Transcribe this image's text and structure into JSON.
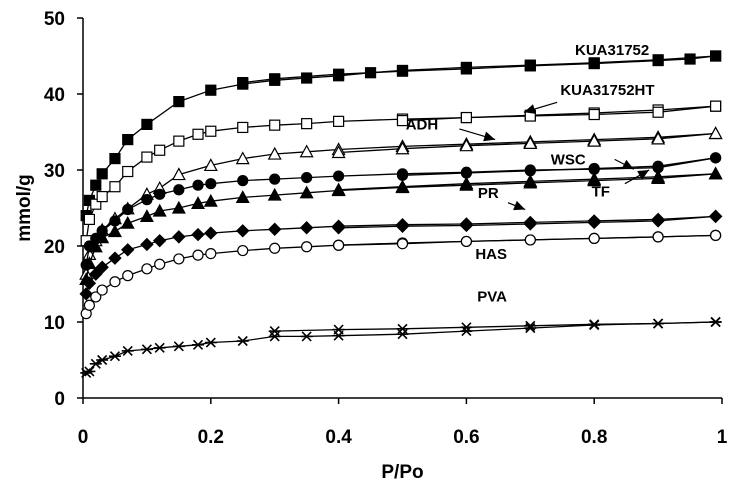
{
  "chart_data": {
    "type": "line",
    "xlabel": "P/Po",
    "ylabel": "mmol/g",
    "xlim": [
      0,
      1
    ],
    "ylim": [
      0,
      50
    ],
    "x_ticks": [
      "0",
      "0.2",
      "0.4",
      "0.6",
      "0.8",
      "1"
    ],
    "y_ticks": [
      "0",
      "10",
      "20",
      "30",
      "40",
      "50"
    ],
    "grid": false,
    "legend": "none",
    "series": [
      {
        "name": "KUA31752",
        "marker": "square-filled",
        "adsorption": {
          "x": [
            0.005,
            0.01,
            0.02,
            0.03,
            0.05,
            0.07,
            0.1,
            0.15,
            0.2,
            0.25,
            0.3,
            0.35,
            0.4,
            0.45,
            0.5,
            0.6,
            0.7,
            0.8,
            0.9,
            0.99
          ],
          "y": [
            24,
            26,
            28,
            29.5,
            31.5,
            34,
            36,
            39,
            40.5,
            41.3,
            41.8,
            42.1,
            42.4,
            42.8,
            43.1,
            43.5,
            43.8,
            44.1,
            44.5,
            45
          ]
        },
        "desorption": {
          "x": [
            0.99,
            0.95,
            0.9,
            0.8,
            0.7,
            0.6,
            0.5,
            0.4,
            0.3,
            0.25
          ],
          "y": [
            45,
            44.6,
            44.4,
            44,
            43.7,
            43.3,
            43,
            42.6,
            42,
            41.5
          ]
        }
      },
      {
        "name": "KUA31752HT",
        "marker": "square-open",
        "adsorption": {
          "x": [
            0.005,
            0.01,
            0.02,
            0.03,
            0.05,
            0.07,
            0.1,
            0.12,
            0.15,
            0.18,
            0.2,
            0.25,
            0.3,
            0.35,
            0.4,
            0.5,
            0.6,
            0.7,
            0.8,
            0.9,
            0.99
          ],
          "y": [
            20.7,
            23.5,
            25.5,
            26.5,
            27.8,
            29.8,
            31.7,
            32.6,
            33.8,
            34.7,
            35.1,
            35.6,
            35.9,
            36.1,
            36.4,
            36.7,
            36.9,
            37.2,
            37.5,
            37.9,
            38.4
          ]
        },
        "desorption": {
          "x": [
            0.99,
            0.9,
            0.8,
            0.7,
            0.6,
            0.5
          ],
          "y": [
            38.4,
            37.6,
            37.3,
            37.1,
            36.9,
            36.5
          ]
        }
      },
      {
        "name": "ADH",
        "marker": "triangle-open",
        "adsorption": {
          "x": [
            0.005,
            0.01,
            0.02,
            0.03,
            0.05,
            0.07,
            0.1,
            0.12,
            0.15,
            0.2,
            0.25,
            0.3,
            0.35,
            0.4,
            0.5,
            0.6,
            0.7,
            0.8,
            0.9,
            0.99
          ],
          "y": [
            16.3,
            18.9,
            20.7,
            22.1,
            23.6,
            24.9,
            26.8,
            27.6,
            29.4,
            30.6,
            31.5,
            32.1,
            32.4,
            32.7,
            33.1,
            33.4,
            33.7,
            34,
            34.3,
            34.8
          ]
        },
        "desorption": {
          "x": [
            0.99,
            0.9,
            0.8,
            0.7,
            0.6,
            0.5,
            0.4
          ],
          "y": [
            34.8,
            34.1,
            33.8,
            33.5,
            33.2,
            32.8,
            32.3
          ]
        }
      },
      {
        "name": "WSC",
        "marker": "circle-filled",
        "adsorption": {
          "x": [
            0.005,
            0.01,
            0.02,
            0.03,
            0.05,
            0.07,
            0.1,
            0.12,
            0.15,
            0.18,
            0.2,
            0.25,
            0.3,
            0.35,
            0.4,
            0.5,
            0.6,
            0.7,
            0.8,
            0.9,
            0.99
          ],
          "y": [
            17.5,
            20,
            21,
            22,
            23.3,
            24.8,
            26.1,
            26.8,
            27.4,
            28,
            28.2,
            28.6,
            28.8,
            29,
            29.2,
            29.5,
            29.7,
            30,
            30.1,
            30.3,
            31.6
          ]
        },
        "desorption": {
          "x": [
            0.99,
            0.9,
            0.8,
            0.7,
            0.6,
            0.5
          ],
          "y": [
            31.6,
            30.5,
            30.2,
            29.9,
            29.6,
            29.3
          ]
        }
      },
      {
        "name": "TF",
        "marker": "triangle-filled",
        "adsorption": {
          "x": [
            0.005,
            0.01,
            0.02,
            0.03,
            0.05,
            0.07,
            0.1,
            0.12,
            0.15,
            0.18,
            0.2,
            0.25,
            0.3,
            0.35,
            0.4,
            0.5,
            0.6,
            0.7,
            0.8,
            0.9,
            0.99
          ],
          "y": [
            15.6,
            17.7,
            19.9,
            21.1,
            21.9,
            23,
            23.9,
            24.6,
            25,
            25.6,
            25.9,
            26.4,
            26.7,
            27,
            27.3,
            27.7,
            28,
            28.3,
            28.6,
            28.9,
            29.5
          ]
        },
        "desorption": {
          "x": [
            0.99,
            0.9,
            0.8,
            0.7,
            0.6,
            0.5,
            0.4
          ],
          "y": [
            29.5,
            29.1,
            28.8,
            28.5,
            28.2,
            27.8,
            27.4
          ]
        }
      },
      {
        "name": "PR",
        "marker": "diamond-filled",
        "adsorption": {
          "x": [
            0.005,
            0.01,
            0.02,
            0.03,
            0.05,
            0.07,
            0.1,
            0.12,
            0.15,
            0.18,
            0.2,
            0.25,
            0.3,
            0.35,
            0.4,
            0.5,
            0.6,
            0.7,
            0.8,
            0.9,
            0.99
          ],
          "y": [
            13.7,
            15.1,
            16.3,
            17.2,
            18.4,
            19.5,
            20.2,
            20.7,
            21.2,
            21.5,
            21.7,
            22,
            22.2,
            22.4,
            22.6,
            22.8,
            22.9,
            23.1,
            23.3,
            23.5,
            23.9
          ]
        },
        "desorption": {
          "x": [
            0.99,
            0.9,
            0.8,
            0.7,
            0.6,
            0.5,
            0.4
          ],
          "y": [
            23.9,
            23.3,
            23.1,
            22.9,
            22.7,
            22.6,
            22.4
          ]
        }
      },
      {
        "name": "HAS",
        "marker": "circle-open",
        "adsorption": {
          "x": [
            0.005,
            0.01,
            0.02,
            0.03,
            0.05,
            0.07,
            0.1,
            0.12,
            0.15,
            0.18,
            0.2,
            0.25,
            0.3,
            0.35,
            0.4,
            0.5,
            0.6,
            0.7,
            0.8,
            0.9,
            0.99
          ],
          "y": [
            11.1,
            12.2,
            13.3,
            14.2,
            15.3,
            16.1,
            17,
            17.6,
            18.3,
            18.8,
            19,
            19.4,
            19.7,
            19.9,
            20.1,
            20.4,
            20.6,
            20.8,
            21,
            21.2,
            21.4
          ]
        },
        "desorption": {
          "x": [
            0.99,
            0.9,
            0.8,
            0.7,
            0.6,
            0.5,
            0.4
          ],
          "y": [
            21.4,
            21.2,
            21,
            20.8,
            20.6,
            20.3,
            20.1
          ]
        }
      },
      {
        "name": "PVA",
        "marker": "asterisk",
        "adsorption": {
          "x": [
            0.005,
            0.01,
            0.02,
            0.03,
            0.05,
            0.07,
            0.1,
            0.12,
            0.15,
            0.18,
            0.2,
            0.25,
            0.3,
            0.35,
            0.4,
            0.5,
            0.6,
            0.7,
            0.8,
            0.9,
            0.99
          ],
          "y": [
            3.3,
            3.5,
            4.5,
            5,
            5.5,
            6.2,
            6.4,
            6.6,
            6.8,
            7,
            7.3,
            7.5,
            8.1,
            8.1,
            8.2,
            8.4,
            8.8,
            9.2,
            9.6,
            9.8,
            10
          ]
        },
        "desorption": {
          "x": [
            0.99,
            0.9,
            0.8,
            0.7,
            0.6,
            0.5,
            0.4,
            0.3
          ],
          "y": [
            10,
            9.8,
            9.7,
            9.5,
            9.3,
            9.1,
            9,
            8.8
          ]
        }
      }
    ],
    "labels": [
      {
        "text": "KUA31752",
        "x": 0.77,
        "y": 45.1
      },
      {
        "text": "KUA31752HT",
        "x": 0.747,
        "y": 39.9
      },
      {
        "text": "ADH",
        "x": 0.505,
        "y": 35.3
      },
      {
        "text": "WSC",
        "x": 0.732,
        "y": 30.7
      },
      {
        "text": "TF",
        "x": 0.796,
        "y": 26.5
      },
      {
        "text": "PR",
        "x": 0.618,
        "y": 26.3
      },
      {
        "text": "HAS",
        "x": 0.614,
        "y": 18.3
      },
      {
        "text": "PVA",
        "x": 0.617,
        "y": 12.7
      }
    ],
    "arrows": [
      {
        "label": "KUA31752HT",
        "from": [
          0.742,
          38.9
        ],
        "to": [
          0.69,
          37.6
        ]
      },
      {
        "label": "ADH",
        "from": [
          0.589,
          35.4
        ],
        "to": [
          0.645,
          34
        ]
      },
      {
        "label": "WSC",
        "from": [
          0.832,
          31.4
        ],
        "to": [
          0.862,
          30.1
        ]
      },
      {
        "label": "TF",
        "from": [
          0.848,
          28.2
        ],
        "to": [
          0.886,
          30
        ]
      },
      {
        "label": "PR",
        "from": [
          0.665,
          25.7
        ],
        "to": [
          0.692,
          24.8
        ]
      }
    ]
  }
}
